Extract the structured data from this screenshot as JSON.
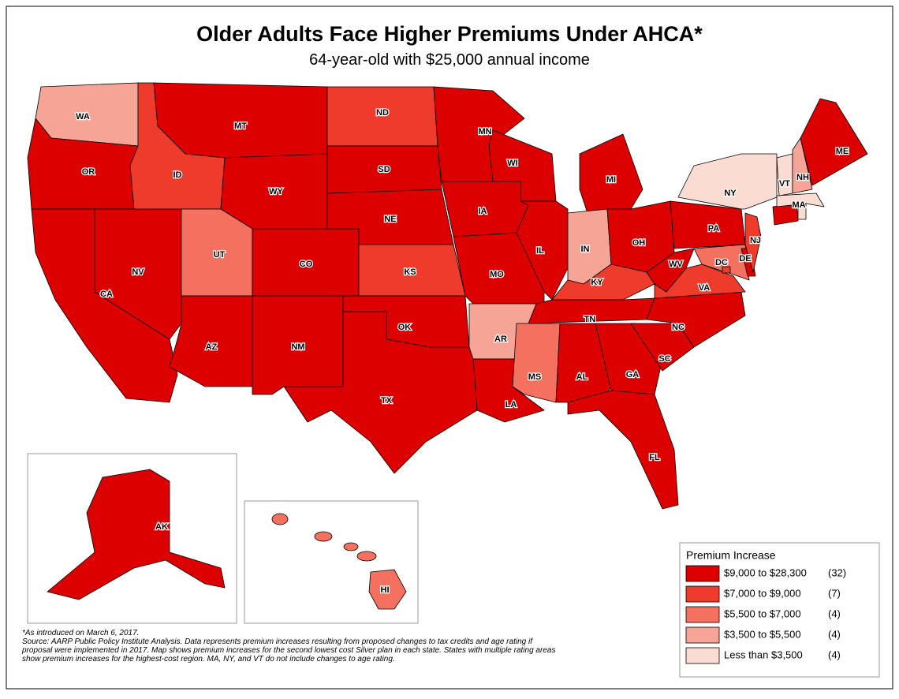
{
  "header": {
    "title": "Older Adults Face Higher Premiums Under AHCA*",
    "subtitle": "64-year-old with $25,000 annual income"
  },
  "states": [
    {
      "label": "WA",
      "color": "#f5a496"
    },
    {
      "label": "OR",
      "color": "#dd0000"
    },
    {
      "label": "CA",
      "color": "#dd0000"
    },
    {
      "label": "NV",
      "color": "#dd0000"
    },
    {
      "label": "ID",
      "color": "#ef3b2c"
    },
    {
      "label": "MT",
      "color": "#dd0000"
    },
    {
      "label": "WY",
      "color": "#dd0000"
    },
    {
      "label": "UT",
      "color": "#f47160"
    },
    {
      "label": "CO",
      "color": "#dd0000"
    },
    {
      "label": "AZ",
      "color": "#dd0000"
    },
    {
      "label": "NM",
      "color": "#dd0000"
    },
    {
      "label": "ND",
      "color": "#ef3b2c"
    },
    {
      "label": "SD",
      "color": "#dd0000"
    },
    {
      "label": "NE",
      "color": "#dd0000"
    },
    {
      "label": "KS",
      "color": "#ef3b2c"
    },
    {
      "label": "OK",
      "color": "#dd0000"
    },
    {
      "label": "TX",
      "color": "#dd0000"
    },
    {
      "label": "MN",
      "color": "#dd0000"
    },
    {
      "label": "IA",
      "color": "#dd0000"
    },
    {
      "label": "MO",
      "color": "#dd0000"
    },
    {
      "label": "AR",
      "color": "#f5a496"
    },
    {
      "label": "LA",
      "color": "#dd0000"
    },
    {
      "label": "WI",
      "color": "#dd0000"
    },
    {
      "label": "IL",
      "color": "#dd0000"
    },
    {
      "label": "MI",
      "color": "#dd0000"
    },
    {
      "label": "IN",
      "color": "#f5a496"
    },
    {
      "label": "OH",
      "color": "#dd0000"
    },
    {
      "label": "KY",
      "color": "#ef3b2c"
    },
    {
      "label": "TN",
      "color": "#dd0000"
    },
    {
      "label": "MS",
      "color": "#f47160"
    },
    {
      "label": "AL",
      "color": "#dd0000"
    },
    {
      "label": "GA",
      "color": "#dd0000"
    },
    {
      "label": "FL",
      "color": "#dd0000"
    },
    {
      "label": "SC",
      "color": "#dd0000"
    },
    {
      "label": "NC",
      "color": "#dd0000"
    },
    {
      "label": "VA",
      "color": "#ef3b2c"
    },
    {
      "label": "WV",
      "color": "#dd0000"
    },
    {
      "label": "PA",
      "color": "#dd0000"
    },
    {
      "label": "NY",
      "color": "#fbdcd2"
    },
    {
      "label": null,
      "color": "#f47160"
    },
    {
      "label": "DE",
      "color": "#dd0000"
    },
    {
      "label": "NJ",
      "color": "#ef3b2c"
    },
    {
      "label": "DC",
      "color": "#ef3b2c"
    },
    {
      "label": null,
      "color": "#dd0000"
    },
    {
      "label": null,
      "color": "#fbdcd2"
    },
    {
      "label": "MA",
      "color": "#fbdcd2"
    },
    {
      "label": "VT",
      "color": "#fbdcd2"
    },
    {
      "label": "NH",
      "color": "#f5a496"
    },
    {
      "label": "ME",
      "color": "#dd0000"
    },
    {
      "label": "AK",
      "color": "#dd0000"
    },
    {
      "label": "HI",
      "color": "#f47160"
    }
  ],
  "legend": {
    "title": "Premium Increase",
    "items": [
      {
        "label": "$9,000 to $28,300",
        "count": "(32)",
        "color": "#dd0000"
      },
      {
        "label": "$7,000 to $9,000",
        "count": "(7)",
        "color": "#ef3b2c"
      },
      {
        "label": "$5,500 to $7,000",
        "count": "(4)",
        "color": "#f47160"
      },
      {
        "label": "$3,500 to $5,500",
        "count": "(4)",
        "color": "#f5a496"
      },
      {
        "label": "Less than $3,500",
        "count": "(4)",
        "color": "#fbdcd2"
      }
    ]
  },
  "notes": [
    "*As introduced on March 6, 2017.",
    "Source:  AARP Public Policy Institute Analysis. Data represents premium increases resulting from proposed changes to tax credits and age rating if",
    "proposal were implemented in 2017. Map shows premium increases for the second lowest cost Silver plan in each state. States with multiple rating areas",
    "show premium increases for the highest-cost region. MA, NY, and VT do not include changes to age rating."
  ]
}
